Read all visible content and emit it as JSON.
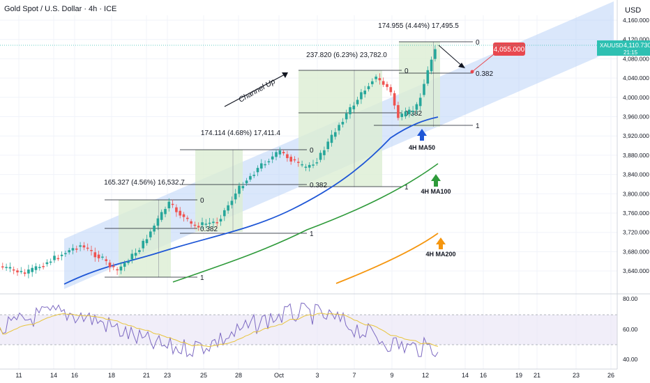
{
  "header": {
    "title": "Gold Spot / U.S. Dollar · 4h · ICE",
    "currency": "USD"
  },
  "colors": {
    "channel_fill": "#bcd3f7",
    "measure_fill": "#dcedd3",
    "bull": "#26a69a",
    "bear": "#ef5350",
    "ma50": "#1e56d6",
    "ma100": "#2e9a3a",
    "ma200": "#f5960f",
    "rsi": "#7e6bc2",
    "rsi_ma": "#e8c43c",
    "target": "#e8484f",
    "price_tag": "#2ec0b2"
  },
  "chart_data": {
    "type": "candlestick",
    "symbol": "XAUUSD",
    "last_price": "4,110.730",
    "countdown": "21:15",
    "target_label": "4,055.000",
    "y_ticks": [
      "4,160.000",
      "4,120.000",
      "4,080.000",
      "4,040.000",
      "4,000.000",
      "3,960.000",
      "3,920.000",
      "3,880.000",
      "3,840.000",
      "3,800.000",
      "3,760.000",
      "3,720.000",
      "3,680.000",
      "3,640.000"
    ],
    "rsi_ticks": [
      "80.00",
      "60.00",
      "40.00"
    ],
    "x_ticks": [
      "11",
      "14",
      "16",
      "18",
      "21",
      "23",
      "25",
      "28",
      "Oct",
      "3",
      "7",
      "9",
      "12",
      "14",
      "16",
      "19",
      "21",
      "23",
      "26"
    ],
    "ylim": [
      3610,
      4180
    ],
    "rsi_ylim": [
      35,
      90
    ],
    "measurements": [
      {
        "label": "165.327 (4.56%) 16,532.7"
      },
      {
        "label": "174.114 (4.68%) 17,411.4"
      },
      {
        "label": "237.820 (6.23%) 23,782.0"
      },
      {
        "label": "174.955 (4.44%) 17,495.5"
      }
    ],
    "fib_labels": [
      "0",
      "0.382",
      "1"
    ],
    "annotations": {
      "channel": "Channel Up",
      "ma50": "4H MA50",
      "ma100": "4H MA100",
      "ma200": "4H MA200"
    }
  }
}
